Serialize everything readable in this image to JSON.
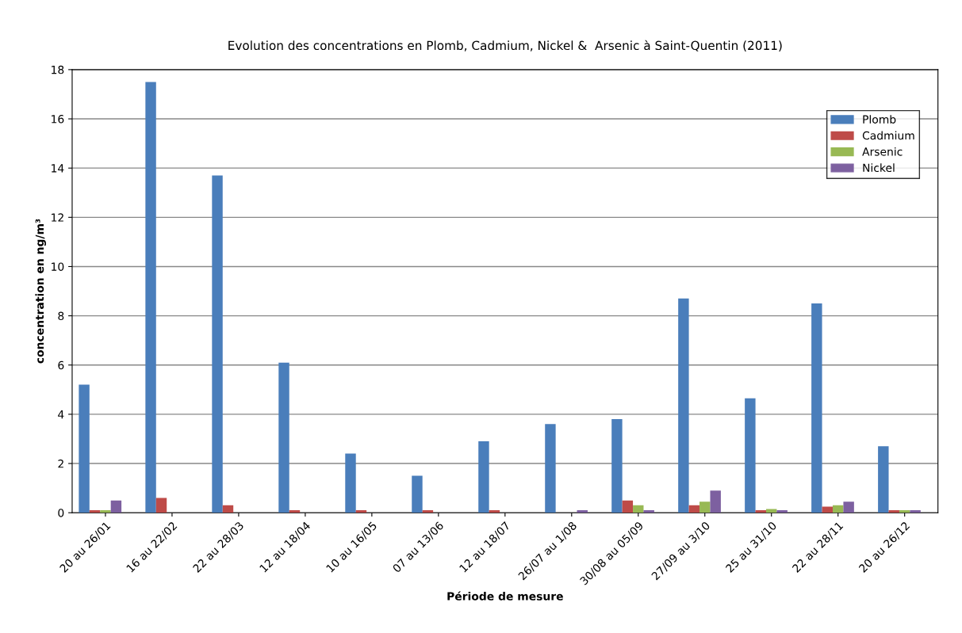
{
  "chart_data": {
    "type": "bar",
    "title": "Evolution des concentrations en Plomb, Cadmium, Nickel &  Arsenic à Saint-Quentin (2011)",
    "xlabel": "Période de mesure",
    "ylabel": "concentration en ng/m³",
    "categories": [
      "20 au 26/01",
      "16 au 22/02",
      "22 au 28/03",
      "12 au 18/04",
      "10 au 16/05",
      "07 au 13/06",
      "12 au 18/07",
      "26/07 au 1/08",
      "30/08 au 05/09",
      "27/09 au 3/10",
      "25 au 31/10",
      "22 au 28/11",
      "20 au 26/12"
    ],
    "series": [
      {
        "name": "Plomb",
        "color": "#4a7ebb",
        "values": [
          5.2,
          17.5,
          13.7,
          6.1,
          2.4,
          1.5,
          2.9,
          3.6,
          3.8,
          8.7,
          4.65,
          8.5,
          2.7
        ]
      },
      {
        "name": "Cadmium",
        "color": "#be4b48",
        "values": [
          0.1,
          0.6,
          0.3,
          0.1,
          0.1,
          0.1,
          0.1,
          null,
          0.5,
          0.3,
          0.1,
          0.25,
          0.1
        ]
      },
      {
        "name": "Arsenic",
        "color": "#98b954",
        "values": [
          0.1,
          null,
          null,
          null,
          null,
          null,
          null,
          null,
          0.3,
          0.45,
          0.15,
          0.3,
          0.1
        ]
      },
      {
        "name": "Nickel",
        "color": "#7d60a0",
        "values": [
          0.5,
          null,
          null,
          null,
          null,
          null,
          null,
          0.1,
          0.1,
          0.9,
          0.1,
          0.45,
          0.1
        ]
      }
    ],
    "ylim": [
      0,
      18
    ],
    "yticks": [
      0,
      2,
      4,
      6,
      8,
      10,
      12,
      14,
      16,
      18
    ],
    "grid": "y",
    "legend": "top right"
  }
}
